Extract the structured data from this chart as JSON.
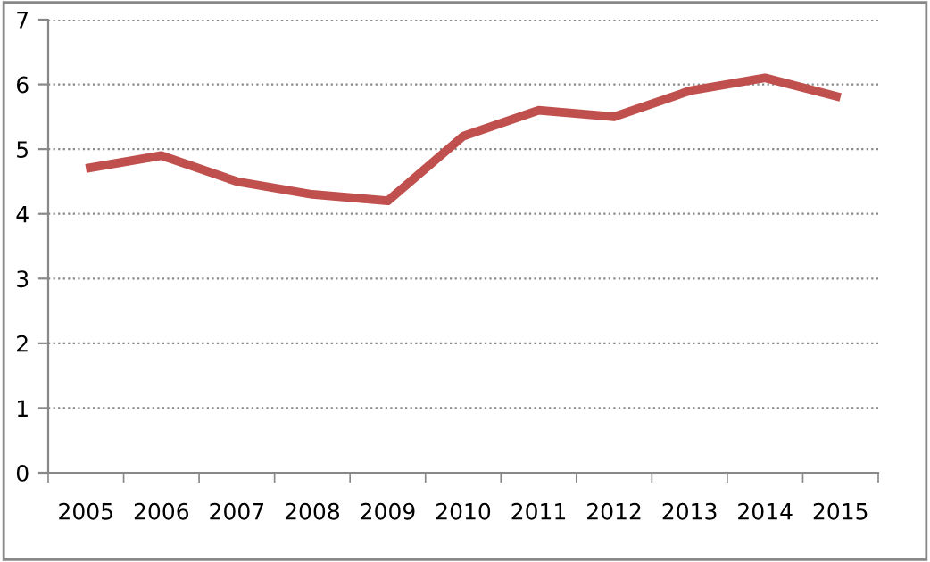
{
  "chart_data": {
    "type": "line",
    "categories": [
      "2005",
      "2006",
      "2007",
      "2008",
      "2009",
      "2010",
      "2011",
      "2012",
      "2013",
      "2014",
      "2015"
    ],
    "series": [
      {
        "color": "#c0504d",
        "values": [
          4.7,
          4.9,
          4.5,
          4.3,
          4.2,
          5.2,
          5.6,
          5.5,
          5.9,
          6.1,
          5.8
        ]
      }
    ],
    "ylim": [
      0,
      7
    ],
    "yticks": [
      0,
      1,
      2,
      3,
      4,
      5,
      6,
      7
    ],
    "grid": "y",
    "legend": false,
    "marker": "none",
    "line_style": "solid"
  }
}
